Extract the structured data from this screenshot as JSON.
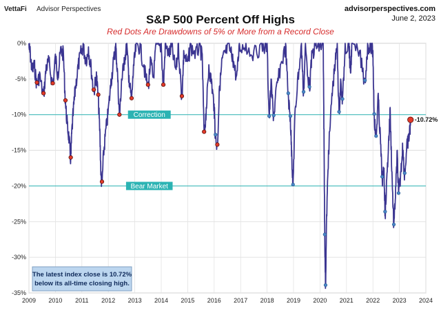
{
  "header": {
    "logo_brand": "VettaFi",
    "logo_sub": "Advisor Perspectives",
    "site": "advisorperspectives.com",
    "date": "June 2, 2023"
  },
  "chart_data": {
    "type": "line",
    "title": "S&P 500 Percent Off Highs",
    "subtitle": "Red Dots Are Drawdowns of 5% or More from a Record Close",
    "xlabel": "",
    "ylabel": "",
    "xlim": [
      2009,
      2024
    ],
    "ylim": [
      -35,
      0
    ],
    "x_ticks": [
      2009,
      2010,
      2011,
      2012,
      2013,
      2014,
      2015,
      2016,
      2017,
      2018,
      2019,
      2020,
      2021,
      2022,
      2023,
      2024
    ],
    "y_ticks": [
      0,
      -5,
      -10,
      -15,
      -20,
      -25,
      -30,
      -35
    ],
    "y_tick_labels": [
      "0%",
      "-5%",
      "-10%",
      "-15%",
      "-20%",
      "-25%",
      "-30%",
      "-35%"
    ],
    "grid": true,
    "reference_lines": [
      {
        "label": "Correction",
        "value": -10,
        "color": "#2bb3b3"
      },
      {
        "label": "Bear Market",
        "value": -20,
        "color": "#2bb3b3"
      }
    ],
    "series": [
      {
        "name": "Percent Off Highs",
        "color": "#3b3591",
        "points": [
          [
            2009.0,
            0
          ],
          [
            2009.05,
            -1.0
          ],
          [
            2009.12,
            -3.5
          ],
          [
            2009.2,
            -2.5
          ],
          [
            2009.3,
            -5.5
          ],
          [
            2009.4,
            -4.0
          ],
          [
            2009.55,
            -7.0
          ],
          [
            2009.65,
            -3.0
          ],
          [
            2009.75,
            -2.0
          ],
          [
            2009.9,
            -5.6
          ],
          [
            2010.0,
            -1.5
          ],
          [
            2010.1,
            -4.0
          ],
          [
            2010.2,
            -0.5
          ],
          [
            2010.3,
            -1.0
          ],
          [
            2010.38,
            -8.0
          ],
          [
            2010.45,
            -11.0
          ],
          [
            2010.52,
            -13.0
          ],
          [
            2010.58,
            -16.0
          ],
          [
            2010.62,
            -12.0
          ],
          [
            2010.68,
            -9.0
          ],
          [
            2010.75,
            -6.0
          ],
          [
            2010.85,
            -3.0
          ],
          [
            2010.95,
            -1.0
          ],
          [
            2011.05,
            0
          ],
          [
            2011.15,
            -2.0
          ],
          [
            2011.25,
            -0.5
          ],
          [
            2011.35,
            -3.0
          ],
          [
            2011.45,
            -6.5
          ],
          [
            2011.55,
            -4.0
          ],
          [
            2011.62,
            -7.2
          ],
          [
            2011.68,
            -12.0
          ],
          [
            2011.72,
            -18.0
          ],
          [
            2011.76,
            -19.4
          ],
          [
            2011.82,
            -15.0
          ],
          [
            2011.9,
            -12.0
          ],
          [
            2012.0,
            -9.0
          ],
          [
            2012.1,
            -5.0
          ],
          [
            2012.2,
            -2.0
          ],
          [
            2012.28,
            0
          ],
          [
            2012.35,
            -4.0
          ],
          [
            2012.42,
            -10.0
          ],
          [
            2012.5,
            -5.0
          ],
          [
            2012.6,
            -2.0
          ],
          [
            2012.7,
            0
          ],
          [
            2012.78,
            -4.5
          ],
          [
            2012.88,
            -7.7
          ],
          [
            2012.95,
            -3.0
          ],
          [
            2013.05,
            0
          ],
          [
            2013.2,
            0
          ],
          [
            2013.35,
            -3.0
          ],
          [
            2013.5,
            -5.8
          ],
          [
            2013.6,
            -2.0
          ],
          [
            2013.7,
            -4.5
          ],
          [
            2013.8,
            0
          ],
          [
            2014.0,
            0
          ],
          [
            2014.08,
            -5.8
          ],
          [
            2014.15,
            0
          ],
          [
            2014.3,
            -1.0
          ],
          [
            2014.4,
            0
          ],
          [
            2014.55,
            -3.5
          ],
          [
            2014.65,
            0
          ],
          [
            2014.78,
            -7.4
          ],
          [
            2014.85,
            -1.0
          ],
          [
            2015.0,
            -2.5
          ],
          [
            2015.1,
            0
          ],
          [
            2015.3,
            -1.0
          ],
          [
            2015.45,
            0
          ],
          [
            2015.55,
            -1.5
          ],
          [
            2015.62,
            -12.4
          ],
          [
            2015.7,
            -9.0
          ],
          [
            2015.8,
            -3.0
          ],
          [
            2015.9,
            -5.0
          ],
          [
            2016.0,
            -8.5
          ],
          [
            2016.05,
            -12.8
          ],
          [
            2016.12,
            -14.2
          ],
          [
            2016.2,
            -6.0
          ],
          [
            2016.3,
            -2.0
          ],
          [
            2016.4,
            -1.0
          ],
          [
            2016.55,
            0
          ],
          [
            2016.7,
            -1.5
          ],
          [
            2016.85,
            -4.5
          ],
          [
            2016.95,
            0
          ],
          [
            2017.2,
            0
          ],
          [
            2017.5,
            -1.0
          ],
          [
            2017.8,
            0
          ],
          [
            2018.0,
            0
          ],
          [
            2018.08,
            -10.2
          ],
          [
            2018.15,
            -5.0
          ],
          [
            2018.25,
            -10.1
          ],
          [
            2018.35,
            -6.0
          ],
          [
            2018.5,
            -3.0
          ],
          [
            2018.7,
            0
          ],
          [
            2018.8,
            -7.0
          ],
          [
            2018.88,
            -10.2
          ],
          [
            2018.93,
            -15.0
          ],
          [
            2018.98,
            -19.8
          ],
          [
            2019.05,
            -10.0
          ],
          [
            2019.15,
            -5.0
          ],
          [
            2019.3,
            0
          ],
          [
            2019.38,
            -6.8
          ],
          [
            2019.45,
            0
          ],
          [
            2019.6,
            -6.1
          ],
          [
            2019.7,
            -1.0
          ],
          [
            2019.85,
            0
          ],
          [
            2020.0,
            0
          ],
          [
            2020.12,
            0
          ],
          [
            2020.15,
            -12.0
          ],
          [
            2020.18,
            -26.8
          ],
          [
            2020.21,
            -33.9
          ],
          [
            2020.25,
            -24.0
          ],
          [
            2020.32,
            -15.0
          ],
          [
            2020.45,
            -7.0
          ],
          [
            2020.55,
            -3.0
          ],
          [
            2020.65,
            0
          ],
          [
            2020.72,
            -9.6
          ],
          [
            2020.78,
            -5.0
          ],
          [
            2020.85,
            -7.8
          ],
          [
            2020.95,
            0
          ],
          [
            2021.1,
            0
          ],
          [
            2021.15,
            -4.0
          ],
          [
            2021.2,
            0
          ],
          [
            2021.5,
            -1.0
          ],
          [
            2021.7,
            -5.2
          ],
          [
            2021.8,
            0
          ],
          [
            2021.95,
            0
          ],
          [
            2022.0,
            -1.0
          ],
          [
            2022.05,
            -9.9
          ],
          [
            2022.12,
            -13.0
          ],
          [
            2022.2,
            -7.0
          ],
          [
            2022.28,
            -13.0
          ],
          [
            2022.35,
            -18.7
          ],
          [
            2022.42,
            -17.5
          ],
          [
            2022.46,
            -23.6
          ],
          [
            2022.52,
            -19.0
          ],
          [
            2022.6,
            -13.0
          ],
          [
            2022.65,
            -9.0
          ],
          [
            2022.72,
            -18.0
          ],
          [
            2022.79,
            -25.4
          ],
          [
            2022.86,
            -20.0
          ],
          [
            2022.92,
            -15.0
          ],
          [
            2022.97,
            -21.0
          ],
          [
            2023.05,
            -18.0
          ],
          [
            2023.12,
            -14.0
          ],
          [
            2023.2,
            -18.2
          ],
          [
            2023.28,
            -14.0
          ],
          [
            2023.35,
            -13.0
          ],
          [
            2023.4,
            -11.5
          ],
          [
            2023.42,
            -10.72
          ]
        ]
      }
    ],
    "red_dots": [
      [
        2009.3,
        -5.5
      ],
      [
        2009.55,
        -7.0
      ],
      [
        2009.9,
        -5.6
      ],
      [
        2010.38,
        -8.0
      ],
      [
        2010.58,
        -16.0
      ],
      [
        2011.45,
        -6.5
      ],
      [
        2011.62,
        -7.2
      ],
      [
        2011.76,
        -19.4
      ],
      [
        2012.42,
        -10.0
      ],
      [
        2012.88,
        -7.7
      ],
      [
        2013.5,
        -5.8
      ],
      [
        2014.08,
        -5.8
      ],
      [
        2014.78,
        -7.4
      ],
      [
        2015.62,
        -12.4
      ],
      [
        2016.12,
        -14.2
      ],
      [
        2023.42,
        -10.72
      ]
    ],
    "blue_dots": [
      [
        2016.05,
        -12.8
      ],
      [
        2018.08,
        -10.2
      ],
      [
        2018.25,
        -10.1
      ],
      [
        2018.8,
        -7.0
      ],
      [
        2018.88,
        -10.2
      ],
      [
        2018.98,
        -19.8
      ],
      [
        2019.38,
        -6.8
      ],
      [
        2019.6,
        -6.1
      ],
      [
        2020.18,
        -26.8
      ],
      [
        2020.21,
        -33.9
      ],
      [
        2020.72,
        -9.6
      ],
      [
        2020.85,
        -7.8
      ],
      [
        2021.7,
        -5.2
      ],
      [
        2022.05,
        -9.9
      ],
      [
        2022.12,
        -13.0
      ],
      [
        2022.35,
        -18.7
      ],
      [
        2022.46,
        -23.6
      ],
      [
        2022.79,
        -25.4
      ],
      [
        2022.97,
        -21.0
      ],
      [
        2023.2,
        -18.2
      ]
    ],
    "latest_label": "-10.72%",
    "note_lines": [
      "The latest index close is 10.72%",
      "below its all-time closing high."
    ]
  }
}
